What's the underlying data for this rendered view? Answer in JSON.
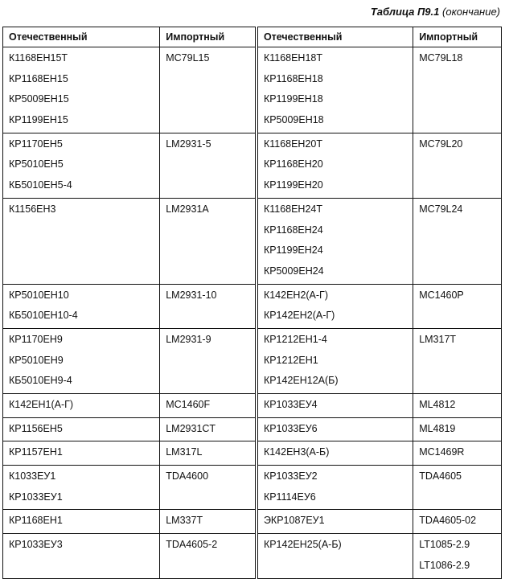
{
  "caption": {
    "title": "Таблица П9.1",
    "note": "(окончание)"
  },
  "headers": [
    "Отечественный",
    "Импортный",
    "Отечественный",
    "Импортный"
  ],
  "rows": [
    [
      [
        "К1168ЕН15Т",
        "КР1168ЕН15",
        "КР5009ЕН15",
        "КР1199ЕН15"
      ],
      [
        "МС79L15"
      ],
      [
        "К1168ЕН18Т",
        "КР1168ЕН18",
        "КР1199ЕН18",
        "КР5009ЕН18"
      ],
      [
        "МС79L18"
      ]
    ],
    [
      [
        "КР1170ЕН5",
        "КР5010ЕН5",
        "КБ5010ЕН5-4"
      ],
      [
        "LM2931-5"
      ],
      [
        "К1168ЕН20Т",
        "КР1168ЕН20",
        "КР1199ЕН20"
      ],
      [
        "МС79L20"
      ]
    ],
    [
      [
        "К1156ЕН3"
      ],
      [
        "LM2931A"
      ],
      [
        "К1168ЕН24Т",
        "КР1168ЕН24",
        "КР1199ЕН24",
        "КР5009ЕН24"
      ],
      [
        "МС79L24"
      ]
    ],
    [
      [
        "КР5010ЕН10",
        "КБ5010ЕН10-4"
      ],
      [
        "LM2931-10"
      ],
      [
        "К142ЕН2(А-Г)",
        "КР142ЕН2(А-Г)"
      ],
      [
        "МС1460Р"
      ]
    ],
    [
      [
        "КР1170ЕН9",
        "КР5010ЕН9",
        "КБ5010ЕН9-4"
      ],
      [
        "LM2931-9"
      ],
      [
        "КР1212ЕН1-4",
        "КР1212ЕН1",
        "КР142ЕН12А(Б)"
      ],
      [
        "LM317T"
      ]
    ],
    [
      [
        "К142ЕН1(А-Г)"
      ],
      [
        "MC1460F"
      ],
      [
        "КР1033ЕУ4"
      ],
      [
        "ML4812"
      ]
    ],
    [
      [
        "КР1156ЕН5"
      ],
      [
        "LM2931CT"
      ],
      [
        "КР1033ЕУ6"
      ],
      [
        "ML4819"
      ]
    ],
    [
      [
        "КР1157ЕН1"
      ],
      [
        "LM317L"
      ],
      [
        "К142ЕН3(А-Б)"
      ],
      [
        "MC1469R"
      ]
    ],
    [
      [
        "К1033ЕУ1",
        "КР1033ЕУ1"
      ],
      [
        "TDA4600"
      ],
      [
        "КР1033ЕУ2",
        "КР1114ЕУ6"
      ],
      [
        "TDA4605"
      ]
    ],
    [
      [
        "КР1168ЕН1"
      ],
      [
        "LM337T"
      ],
      [
        "ЭКР1087ЕУ1"
      ],
      [
        "TDA4605-02"
      ]
    ],
    [
      [
        "КР1033ЕУ3"
      ],
      [
        "TDA4605-2"
      ],
      [
        "КР142ЕН25(А-Б)"
      ],
      [
        "LT1085-2.9",
        "LT1086-2.9"
      ]
    ]
  ]
}
